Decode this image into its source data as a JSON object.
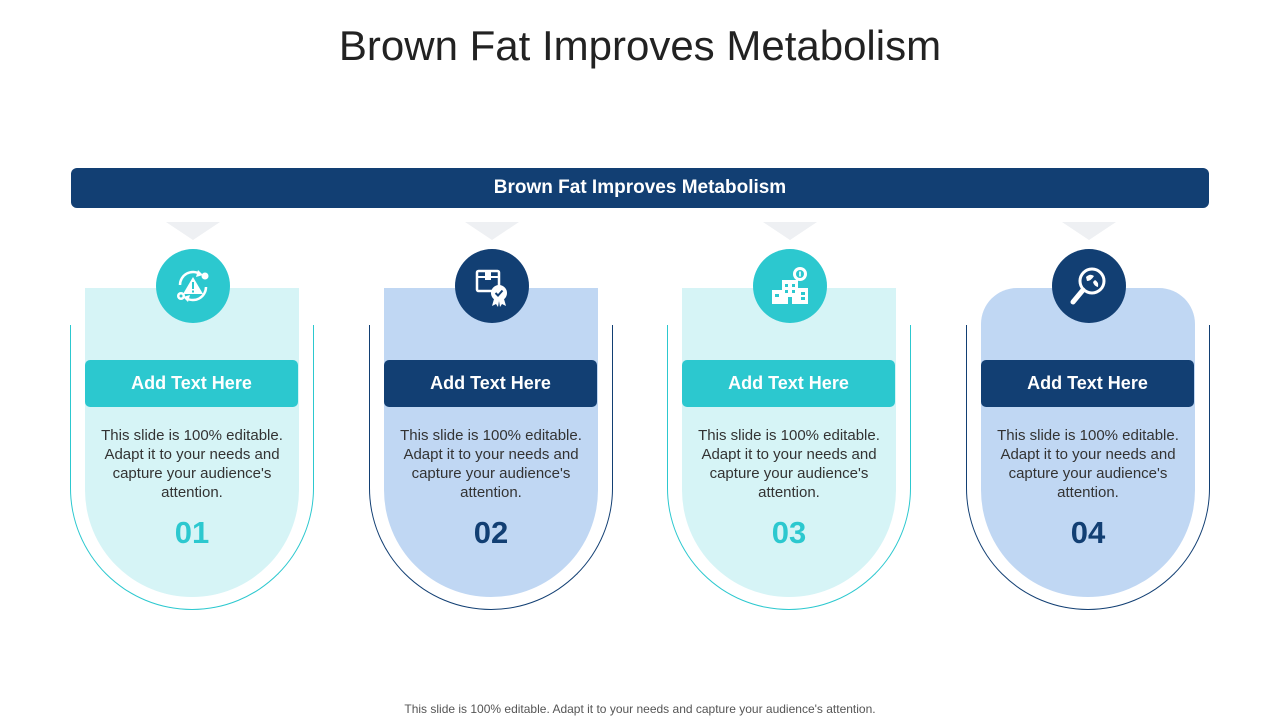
{
  "slide": {
    "title": "Brown Fat Improves Metabolism",
    "banner": "Brown Fat Improves Metabolism",
    "footer": "This slide is 100% editable. Adapt it to your needs and capture your audience's attention."
  },
  "colors": {
    "navy": "#123f73",
    "teal": "#2cc8cf",
    "light_teal_panel": "#d6f4f6",
    "light_blue_panel": "#c0d7f3"
  },
  "cards": [
    {
      "icon": "risk-warning-cycle-icon",
      "heading": "Add Text Here",
      "text": "This slide is 100% editable. Adapt it to your needs and capture your audience's attention.",
      "number": "01"
    },
    {
      "icon": "certified-package-icon",
      "heading": "Add Text Here",
      "text": "This slide is 100% editable. Adapt it to your needs and capture your audience's attention.",
      "number": "02"
    },
    {
      "icon": "building-finance-icon",
      "heading": "Add Text Here",
      "text": "This slide is 100% editable. Adapt it to your needs and capture your audience's attention.",
      "number": "03"
    },
    {
      "icon": "magnify-analysis-icon",
      "heading": "Add Text Here",
      "text": "This slide is 100% editable. Adapt it to your needs and capture your audience's attention.",
      "number": "04"
    }
  ]
}
